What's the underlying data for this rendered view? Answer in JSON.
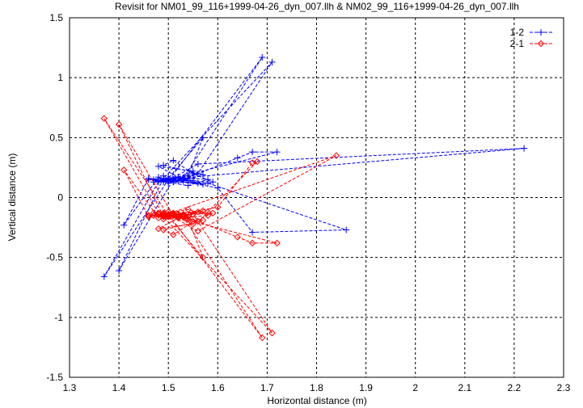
{
  "chart_data": {
    "type": "line",
    "title": "Revisit for NM01_99_116+1999-04-26_dyn_007.llh & NM02_99_116+1999-04-26_dyn_007.llh",
    "xlabel": "Horizontal distance (m)",
    "ylabel": "Vertical distance (m)",
    "xlim": [
      1.3,
      2.3
    ],
    "ylim": [
      -1.5,
      1.5
    ],
    "grid": true,
    "legend_position": "top-right",
    "xticks": [
      "1.3",
      "1.4",
      "1.5",
      "1.6",
      "1.7",
      "1.8",
      "1.9",
      "2",
      "2.1",
      "2.2",
      "2.3"
    ],
    "xtick_values": [
      1.3,
      1.4,
      1.5,
      1.6,
      1.7,
      1.8,
      1.9,
      2.0,
      2.1,
      2.2,
      2.3
    ],
    "yticks": [
      "-1.5",
      "-1",
      "-0.5",
      "0",
      "0.5",
      "1",
      "1.5"
    ],
    "ytick_values": [
      -1.5,
      -1,
      -0.5,
      0,
      0.5,
      1,
      1.5
    ],
    "series": [
      {
        "name": "1-2",
        "color": "#0000ff",
        "marker": "plus",
        "x": [
          1.49,
          1.51,
          1.53,
          1.69,
          1.5,
          1.48,
          1.37,
          1.5,
          1.52,
          1.55,
          1.71,
          1.49,
          1.4,
          1.51,
          1.47,
          1.54,
          1.57,
          1.5,
          1.49,
          1.53,
          1.64,
          1.67,
          1.72,
          1.52,
          1.48,
          1.55,
          1.5,
          1.56,
          2.22,
          1.49,
          1.51,
          1.58,
          1.86,
          1.67,
          1.6,
          1.52,
          1.5,
          1.48,
          1.41,
          1.46,
          1.53,
          1.57,
          1.49,
          1.51,
          1.55,
          1.59,
          1.5,
          1.56,
          1.52,
          1.48,
          1.54,
          1.58,
          1.49,
          1.51,
          1.47,
          1.53,
          1.56,
          1.5,
          1.57,
          1.52,
          1.46,
          1.49,
          1.54
        ],
        "y": [
          0.15,
          0.14,
          0.16,
          1.17,
          0.14,
          0.13,
          -0.66,
          0.15,
          0.17,
          0.14,
          1.13,
          0.16,
          -0.61,
          0.15,
          0.13,
          0.18,
          0.5,
          0.16,
          0.14,
          0.15,
          0.33,
          0.38,
          0.38,
          0.17,
          0.26,
          0.22,
          0.14,
          0.28,
          0.41,
          0.15,
          0.13,
          0.12,
          -0.27,
          -0.29,
          0.08,
          0.14,
          0.12,
          0.17,
          -0.23,
          0.16,
          0.14,
          0.19,
          0.27,
          0.31,
          0.2,
          0.13,
          0.15,
          0.12,
          0.16,
          0.14,
          0.1,
          0.15,
          0.18,
          0.13,
          0.15,
          0.16,
          0.2,
          0.14,
          0.11,
          0.17,
          0.15,
          0.13,
          0.16
        ]
      },
      {
        "name": "2-1",
        "color": "#ff0000",
        "marker": "diamond",
        "x": [
          1.49,
          1.51,
          1.53,
          1.69,
          1.5,
          1.48,
          1.37,
          1.5,
          1.52,
          1.55,
          1.71,
          1.49,
          1.4,
          1.51,
          1.47,
          1.54,
          1.57,
          1.5,
          1.49,
          1.53,
          1.64,
          1.67,
          1.72,
          1.52,
          1.48,
          1.55,
          1.5,
          1.56,
          1.84,
          1.49,
          1.51,
          1.58,
          1.68,
          1.67,
          1.6,
          1.52,
          1.5,
          1.48,
          1.41,
          1.46,
          1.53,
          1.57,
          1.49,
          1.51,
          1.55,
          1.59,
          1.5,
          1.56,
          1.52,
          1.48,
          1.54,
          1.58,
          1.49,
          1.51,
          1.47,
          1.53,
          1.56,
          1.5,
          1.57,
          1.52,
          1.46,
          1.49,
          1.54
        ],
        "y": [
          -0.15,
          -0.14,
          -0.16,
          -1.17,
          -0.14,
          -0.13,
          0.66,
          -0.15,
          -0.17,
          -0.14,
          -1.13,
          -0.16,
          0.61,
          -0.15,
          -0.13,
          -0.18,
          -0.5,
          -0.16,
          -0.14,
          -0.15,
          -0.33,
          -0.38,
          -0.38,
          -0.17,
          -0.26,
          -0.22,
          -0.14,
          -0.28,
          0.35,
          -0.15,
          -0.13,
          -0.12,
          0.3,
          0.29,
          -0.08,
          -0.14,
          -0.12,
          -0.17,
          0.23,
          -0.16,
          -0.14,
          -0.19,
          -0.27,
          -0.31,
          -0.2,
          -0.13,
          -0.15,
          -0.12,
          -0.16,
          -0.14,
          -0.1,
          -0.15,
          -0.18,
          -0.13,
          -0.15,
          -0.16,
          -0.2,
          -0.14,
          -0.11,
          -0.17,
          -0.15,
          -0.13,
          -0.16
        ]
      }
    ]
  }
}
